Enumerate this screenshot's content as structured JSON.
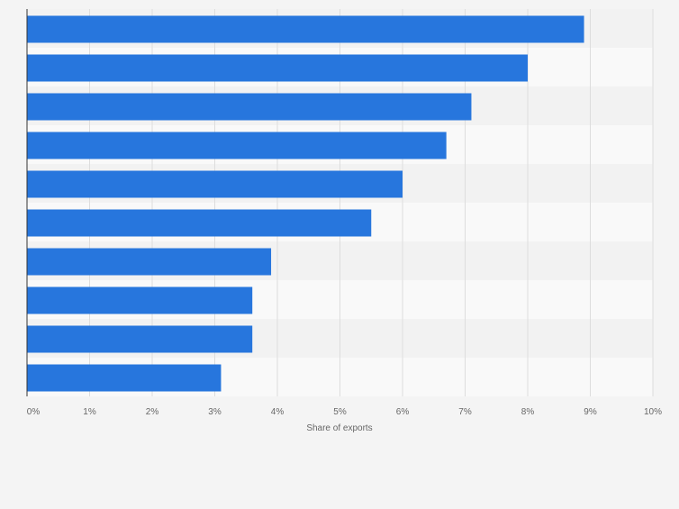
{
  "chart_data": {
    "type": "bar",
    "orientation": "horizontal",
    "categories": [
      "",
      "",
      "",
      "",
      "",
      "",
      "",
      "",
      "",
      ""
    ],
    "values": [
      8.9,
      8.0,
      7.1,
      6.7,
      6.0,
      5.5,
      3.9,
      3.6,
      3.6,
      3.1
    ],
    "x_ticks": [
      "0%",
      "1%",
      "2%",
      "3%",
      "4%",
      "5%",
      "6%",
      "7%",
      "8%",
      "9%",
      "10%"
    ],
    "xlim": [
      0,
      10
    ],
    "xlabel": "Share of exports",
    "grid": true,
    "colors": {
      "bar": "#2776dd",
      "band_dark": "#f2f2f2",
      "band_light": "#f9f9f9",
      "grid": "#dddddd",
      "axis": "#333333",
      "text": "#666666"
    }
  }
}
